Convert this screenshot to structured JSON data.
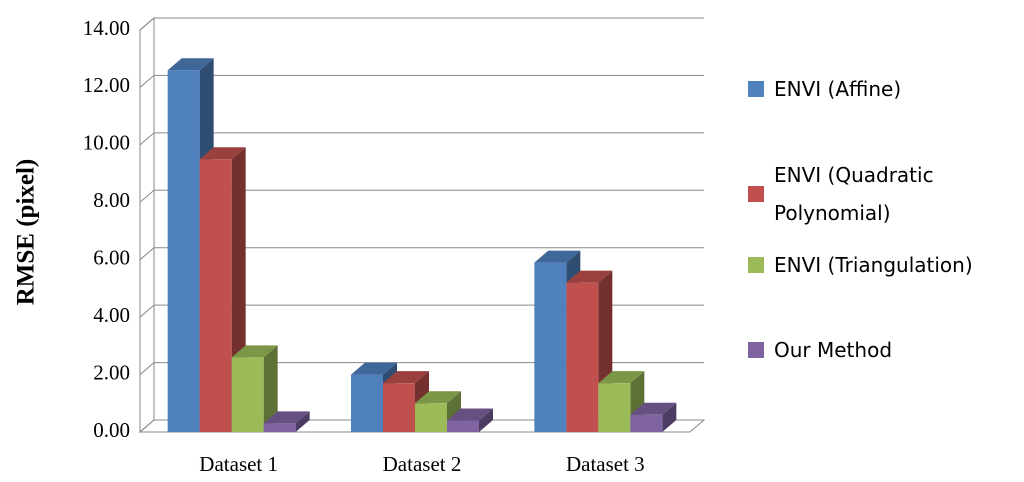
{
  "chart_data": {
    "type": "bar3d",
    "y_label": "RMSE (pixel)",
    "categories": [
      "Dataset 1",
      "Dataset 2",
      "Dataset 3"
    ],
    "series": [
      {
        "name": "ENVI (Affine)",
        "color": "#4f81bd",
        "values": [
          12.6,
          2.0,
          5.9
        ]
      },
      {
        "name": "ENVI (Quadratic Polynomial)",
        "color": "#c0504d",
        "values": [
          9.5,
          1.7,
          5.2
        ]
      },
      {
        "name": "ENVI (Triangulation)",
        "color": "#9bbb59",
        "values": [
          2.6,
          1.0,
          1.7
        ]
      },
      {
        "name": "Our Method",
        "color": "#8064a2",
        "values": [
          0.3,
          0.4,
          0.6
        ]
      }
    ],
    "ylim": [
      0,
      14
    ],
    "yticks": [
      {
        "value": 0,
        "label": "0.00"
      },
      {
        "value": 2,
        "label": "2.00"
      },
      {
        "value": 4,
        "label": "4.00"
      },
      {
        "value": 6,
        "label": "6.00"
      },
      {
        "value": 8,
        "label": "8.00"
      },
      {
        "value": 10,
        "label": "10.00"
      },
      {
        "value": 12,
        "label": "12.00"
      },
      {
        "value": 14,
        "label": "14.00"
      }
    ],
    "grid": true,
    "legend": "right"
  }
}
